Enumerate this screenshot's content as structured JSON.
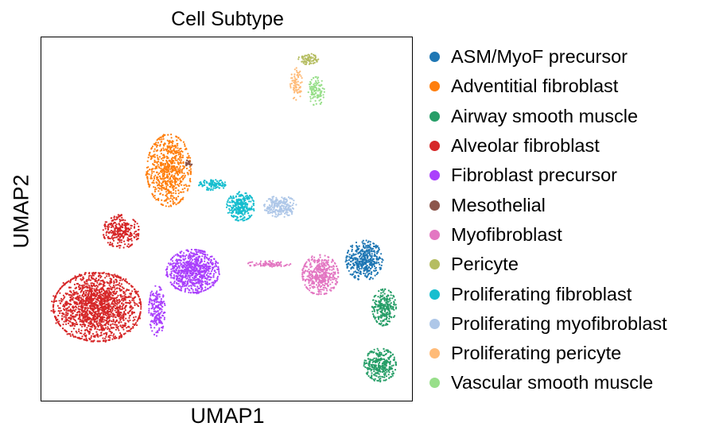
{
  "chart_data": {
    "type": "scatter",
    "title": "Cell Subtype",
    "xlabel": "UMAP1",
    "ylabel": "UMAP2",
    "grid": false,
    "legend_position": "right",
    "series": [
      {
        "name": "ASM/MyoF precursor",
        "color": "#1f77b4",
        "clusters": [
          {
            "x": 8.1,
            "y": 3.6,
            "rx": 0.45,
            "ry": 0.55,
            "n": 420
          }
        ]
      },
      {
        "name": "Adventitial fibroblast",
        "color": "#ff7f0e",
        "clusters": [
          {
            "x": 3.2,
            "y": 6.1,
            "rx": 0.55,
            "ry": 1.0,
            "n": 700
          }
        ]
      },
      {
        "name": "Airway smooth muscle",
        "color": "#279e68",
        "clusters": [
          {
            "x": 8.6,
            "y": 2.3,
            "rx": 0.3,
            "ry": 0.5,
            "n": 260
          },
          {
            "x": 8.5,
            "y": 0.7,
            "rx": 0.4,
            "ry": 0.45,
            "n": 320
          }
        ]
      },
      {
        "name": "Alveolar fibroblast",
        "color": "#d62728",
        "clusters": [
          {
            "x": 1.4,
            "y": 2.3,
            "rx": 1.1,
            "ry": 0.95,
            "n": 1800
          },
          {
            "x": 2.0,
            "y": 4.4,
            "rx": 0.45,
            "ry": 0.45,
            "n": 300
          }
        ]
      },
      {
        "name": "Fibroblast precursor",
        "color": "#aa40fc",
        "clusters": [
          {
            "x": 3.8,
            "y": 3.3,
            "rx": 0.65,
            "ry": 0.6,
            "n": 800
          },
          {
            "x": 2.9,
            "y": 2.2,
            "rx": 0.2,
            "ry": 0.7,
            "n": 200
          }
        ]
      },
      {
        "name": "Mesothelial",
        "color": "#8c564b",
        "clusters": [
          {
            "x": 3.7,
            "y": 6.3,
            "rx": 0.08,
            "ry": 0.1,
            "n": 25
          }
        ]
      },
      {
        "name": "Myofibroblast",
        "color": "#e377c2",
        "clusters": [
          {
            "x": 7.0,
            "y": 3.2,
            "rx": 0.45,
            "ry": 0.55,
            "n": 450
          },
          {
            "x": 5.7,
            "y": 3.5,
            "rx": 0.55,
            "ry": 0.08,
            "n": 80
          }
        ]
      },
      {
        "name": "Pericyte",
        "color": "#b5bd61",
        "clusters": [
          {
            "x": 6.7,
            "y": 9.2,
            "rx": 0.25,
            "ry": 0.15,
            "n": 80
          }
        ]
      },
      {
        "name": "Proliferating fibroblast",
        "color": "#17becf",
        "clusters": [
          {
            "x": 5.0,
            "y": 5.1,
            "rx": 0.35,
            "ry": 0.4,
            "n": 300
          },
          {
            "x": 4.3,
            "y": 5.7,
            "rx": 0.35,
            "ry": 0.15,
            "n": 100
          }
        ]
      },
      {
        "name": "Proliferating myofibroblast",
        "color": "#aec7e8",
        "clusters": [
          {
            "x": 6.0,
            "y": 5.1,
            "rx": 0.4,
            "ry": 0.3,
            "n": 220
          }
        ]
      },
      {
        "name": "Proliferating pericyte",
        "color": "#ffbb78",
        "clusters": [
          {
            "x": 6.4,
            "y": 8.5,
            "rx": 0.15,
            "ry": 0.45,
            "n": 80
          }
        ]
      },
      {
        "name": "Vascular smooth muscle",
        "color": "#98df8a",
        "clusters": [
          {
            "x": 6.9,
            "y": 8.3,
            "rx": 0.2,
            "ry": 0.4,
            "n": 110
          }
        ]
      }
    ]
  }
}
